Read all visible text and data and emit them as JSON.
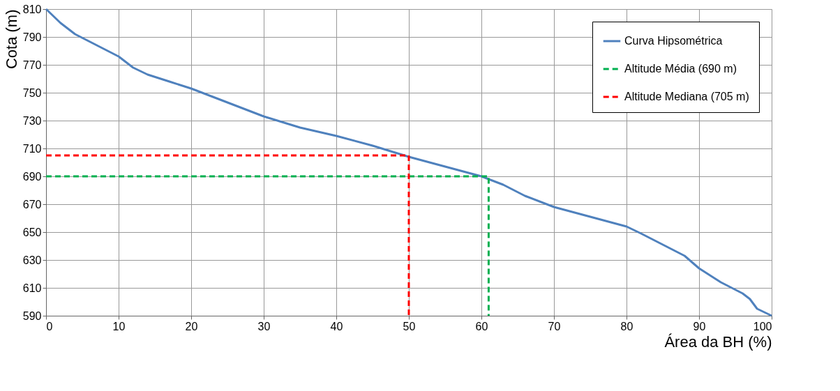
{
  "chart_data": {
    "type": "line",
    "xlabel": "Área da BH (%)",
    "ylabel": "Cota (m)",
    "xlim": [
      0,
      100
    ],
    "xticks": [
      0,
      10,
      20,
      30,
      40,
      50,
      60,
      70,
      80,
      90,
      100
    ],
    "ylim": [
      590,
      810
    ],
    "yticks": [
      590,
      610,
      630,
      650,
      670,
      690,
      710,
      730,
      750,
      770,
      790,
      810
    ],
    "grid": true,
    "legend": "top right",
    "marker": "none",
    "series": [
      {
        "name": "Curva Hipsométrica",
        "color": "#4f81bd",
        "line_style": "solid",
        "x": [
          0,
          2,
          4,
          7,
          10,
          12,
          14,
          17,
          20,
          25,
          30,
          35,
          40,
          45,
          50,
          55,
          60,
          63,
          66,
          70,
          75,
          80,
          82,
          85,
          88,
          90,
          93,
          96,
          97,
          98,
          100
        ],
        "values": [
          810,
          800,
          792,
          784,
          776,
          768,
          763,
          758,
          753,
          743,
          733,
          725,
          719,
          712,
          704,
          697,
          690,
          684,
          676,
          668,
          661,
          654,
          649,
          641,
          633,
          624,
          614,
          606,
          602,
          595,
          590
        ]
      },
      {
        "name": "Altitude Média (690 m)",
        "color": "#00b050",
        "line_style": "dashed",
        "x": [
          0,
          61,
          61
        ],
        "values": [
          690,
          690,
          590
        ]
      },
      {
        "name": "Altitude Mediana (705 m)",
        "color": "#ff0000",
        "line_style": "dashed",
        "x": [
          0,
          50,
          50
        ],
        "values": [
          705,
          705,
          590
        ]
      }
    ]
  }
}
